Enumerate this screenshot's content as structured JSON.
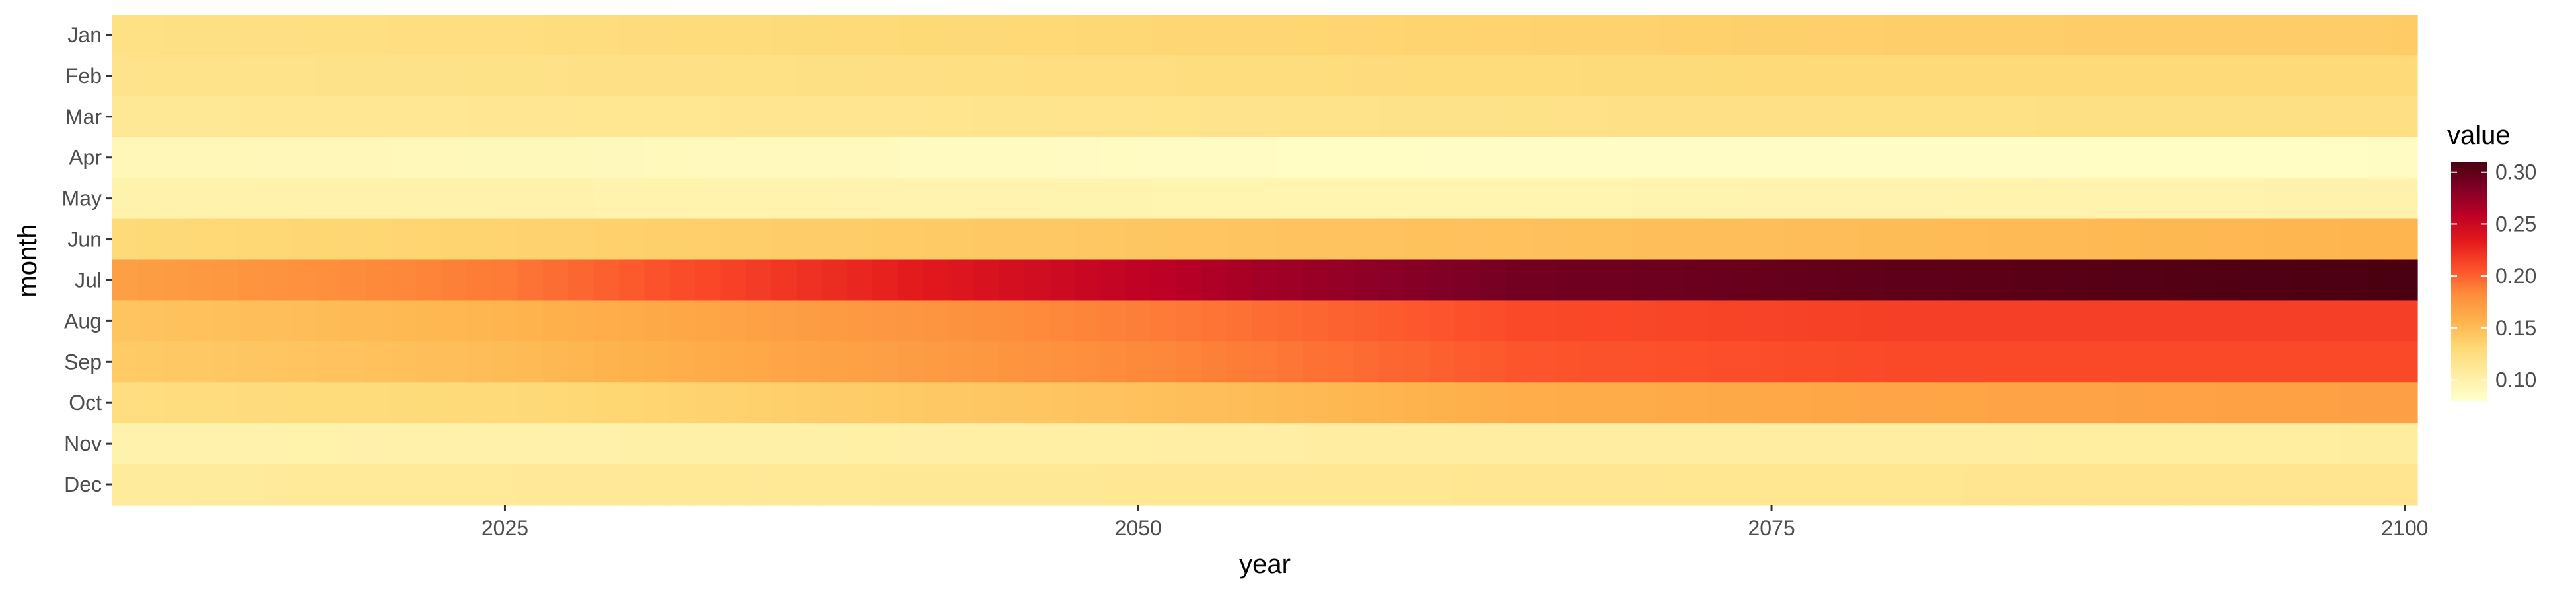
{
  "chart_data": {
    "type": "heatmap",
    "title": "",
    "xlabel": "year",
    "ylabel": "month",
    "x_ticks": [
      2025,
      2050,
      2075,
      2100
    ],
    "xlim": [
      2010,
      2100
    ],
    "months": [
      "Jan",
      "Feb",
      "Mar",
      "Apr",
      "May",
      "Jun",
      "Jul",
      "Aug",
      "Sep",
      "Oct",
      "Nov",
      "Dec"
    ],
    "years_start": 2010,
    "years_end": 2100,
    "value_anchors": {
      "years": [
        2010,
        2025,
        2040,
        2055,
        2065,
        2080,
        2100
      ],
      "Jan": [
        0.122,
        0.125,
        0.13,
        0.133,
        0.135,
        0.138,
        0.14
      ],
      "Feb": [
        0.118,
        0.12,
        0.123,
        0.126,
        0.128,
        0.13,
        0.13
      ],
      "Mar": [
        0.112,
        0.114,
        0.116,
        0.118,
        0.12,
        0.122,
        0.123
      ],
      "Apr": [
        0.092,
        0.09,
        0.088,
        0.085,
        0.084,
        0.084,
        0.085
      ],
      "May": [
        0.098,
        0.098,
        0.097,
        0.096,
        0.096,
        0.097,
        0.098
      ],
      "Jun": [
        0.13,
        0.135,
        0.14,
        0.145,
        0.147,
        0.15,
        0.155
      ],
      "Jul": [
        0.17,
        0.19,
        0.23,
        0.27,
        0.29,
        0.3,
        0.31
      ],
      "Aug": [
        0.145,
        0.155,
        0.175,
        0.195,
        0.21,
        0.215,
        0.215
      ],
      "Sep": [
        0.14,
        0.15,
        0.17,
        0.19,
        0.205,
        0.21,
        0.21
      ],
      "Oct": [
        0.125,
        0.13,
        0.14,
        0.15,
        0.16,
        0.165,
        0.17
      ],
      "Nov": [
        0.098,
        0.1,
        0.102,
        0.104,
        0.105,
        0.105,
        0.106
      ],
      "Dec": [
        0.108,
        0.11,
        0.112,
        0.113,
        0.114,
        0.115,
        0.116
      ]
    },
    "legend": {
      "title": "value",
      "ticks": [
        0.1,
        0.15,
        0.2,
        0.25,
        0.3
      ],
      "tick_labels": [
        "0.10",
        "0.15",
        "0.20",
        "0.25",
        "0.30"
      ],
      "range": [
        0.08,
        0.31
      ],
      "palette": [
        "#ffffcc",
        "#ffeda0",
        "#fed976",
        "#feb24c",
        "#fd8d3c",
        "#fc4e2a",
        "#e31a1c",
        "#bd0026",
        "#800026",
        "#4a0010"
      ],
      "position": "right"
    },
    "grid": false
  }
}
